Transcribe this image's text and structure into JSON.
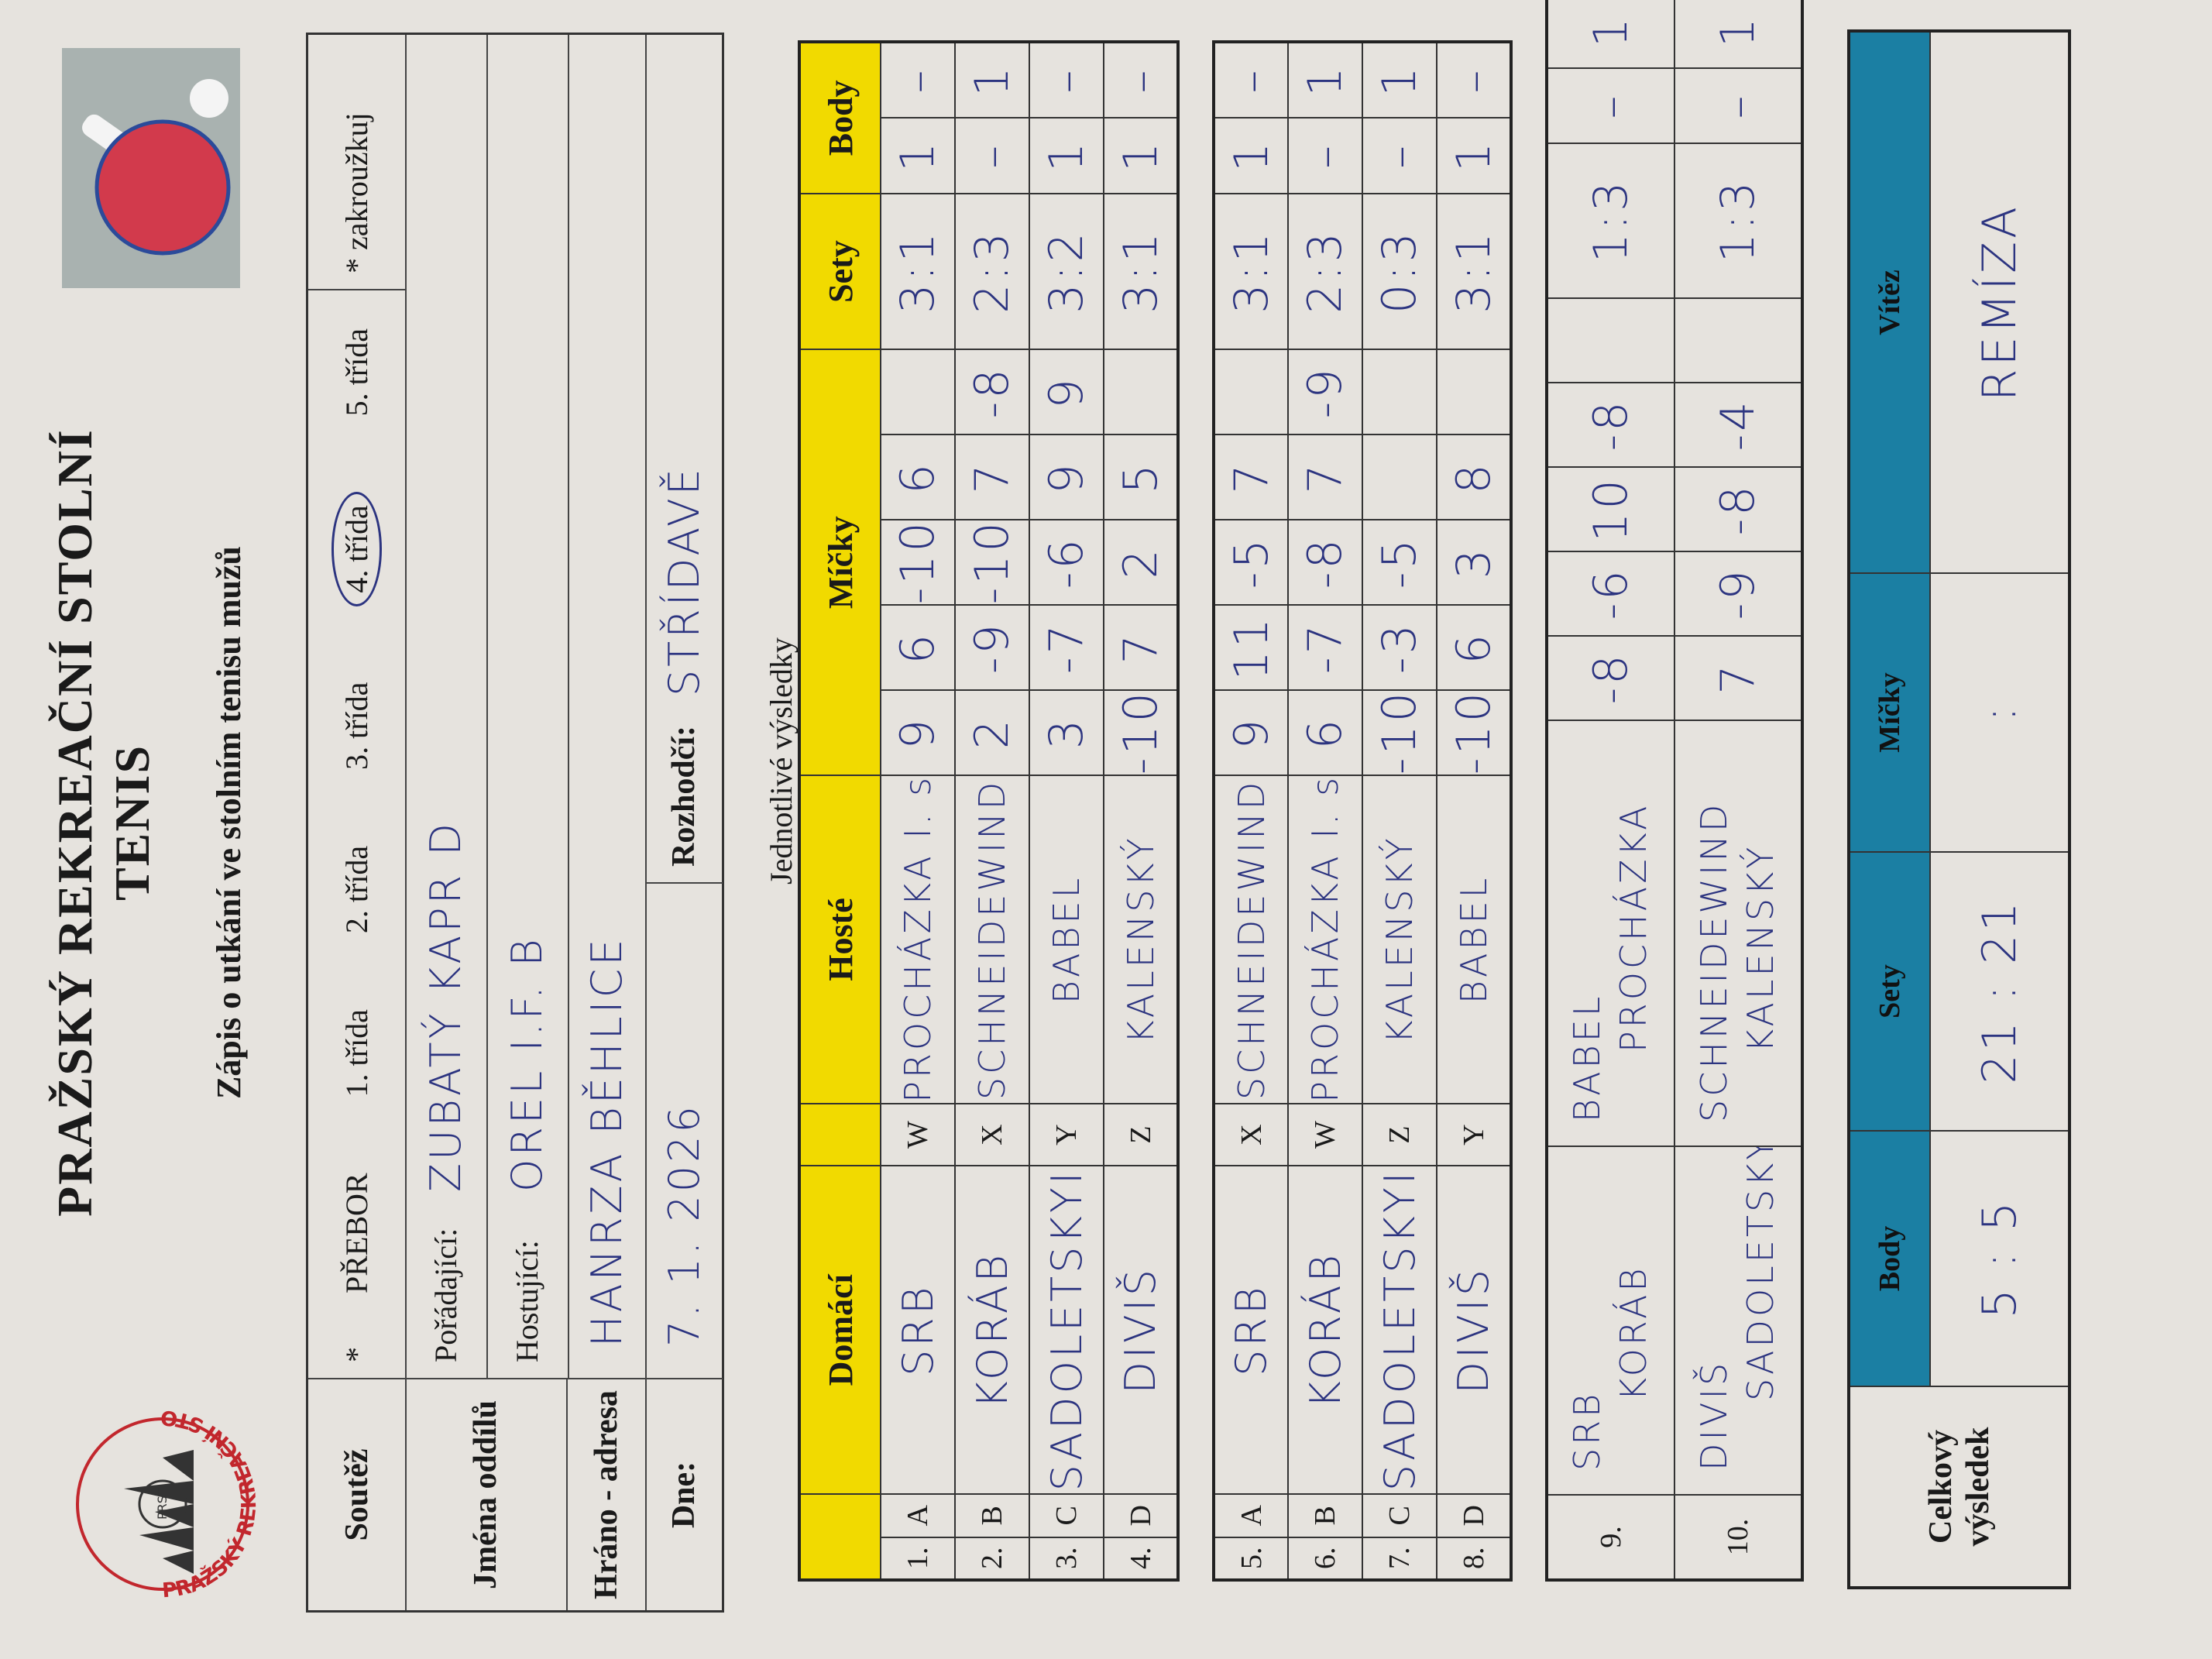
{
  "header": {
    "title": "PRAŽSKÝ REKREAČNÍ STOLNÍ TENIS",
    "subtitle": "Zápis o utkání ve stolním tenisu mužů",
    "logo_text": "PRAŽSKÝ REKREAČNÍ STOLNÍ TENIS",
    "logo_abbr": "PRST"
  },
  "info": {
    "competition_label": "Soutěž",
    "asterisk": "*",
    "options": [
      "PŘEBOR",
      "1. třída",
      "2. třída",
      "3. třída",
      "4. třída",
      "5. třída"
    ],
    "selected_option": "4. třída",
    "note": "* zakroužkuj",
    "clubs_label": "Jména oddílů",
    "home_label": "Pořádající:",
    "home_club": "ZUBATÝ KAPR D",
    "away_label": "Hostující:",
    "away_club": "OREL I.F. B",
    "venue_label": "Hráno - adresa",
    "venue": "HANRZA BĚHLICE",
    "date_label": "Dne:",
    "date": "7. 1. 2026",
    "referee_label": "Rozhodčí:",
    "referee": "STŘÍDAVĚ"
  },
  "singles": {
    "section_label": "Jednotlivé výsledky",
    "headers": {
      "home": "Domácí",
      "away": "Hosté",
      "balls": "Míčky",
      "sets": "Sety",
      "points": "Body"
    },
    "rows": [
      {
        "no": "1.",
        "hpos": "A",
        "home": "SRB",
        "apos": "W",
        "away": "PROCHÁZKA I. st.",
        "balls": [
          "9",
          "6",
          "-10",
          "6",
          ""
        ],
        "sets": "3:1",
        "points": [
          "1",
          "–"
        ]
      },
      {
        "no": "2.",
        "hpos": "B",
        "home": "KORÁB",
        "apos": "X",
        "away": "SCHNEIDEWIND",
        "balls": [
          "2",
          "-9",
          "-10",
          "7",
          "-8"
        ],
        "sets": "2:3",
        "points": [
          "–",
          "1"
        ]
      },
      {
        "no": "3.",
        "hpos": "C",
        "home": "SADOLETSKYI",
        "apos": "Y",
        "away": "BABEL",
        "balls": [
          "3",
          "-7",
          "-6",
          "9",
          "9"
        ],
        "sets": "3:2",
        "points": [
          "1",
          "–"
        ]
      },
      {
        "no": "4.",
        "hpos": "D",
        "home": "DIVIŠ",
        "apos": "Z",
        "away": "KALENSKÝ",
        "balls": [
          "-10",
          "7",
          "2",
          "5",
          ""
        ],
        "sets": "3:1",
        "points": [
          "1",
          "–"
        ]
      }
    ],
    "rows2": [
      {
        "no": "5.",
        "hpos": "A",
        "home": "SRB",
        "apos": "X",
        "away": "SCHNEIDEWIND",
        "balls": [
          "9",
          "11",
          "-5",
          "7",
          ""
        ],
        "sets": "3:1",
        "points": [
          "1",
          "–"
        ]
      },
      {
        "no": "6.",
        "hpos": "B",
        "home": "KORÁB",
        "apos": "W",
        "away": "PROCHÁZKA I. st.",
        "balls": [
          "6",
          "-7",
          "-8",
          "7",
          "-9"
        ],
        "sets": "2:3",
        "points": [
          "–",
          "1"
        ]
      },
      {
        "no": "7.",
        "hpos": "C",
        "home": "SADOLETSKYI",
        "apos": "Z",
        "away": "KALENSKÝ",
        "balls": [
          "-10",
          "-3",
          "-5",
          "",
          ""
        ],
        "sets": "0:3",
        "points": [
          "–",
          "1"
        ]
      },
      {
        "no": "8.",
        "hpos": "D",
        "home": "DIVIŠ",
        "apos": "Y",
        "away": "BABEL",
        "balls": [
          "-10",
          "6",
          "3",
          "8",
          ""
        ],
        "sets": "3:1",
        "points": [
          "1",
          "–"
        ]
      }
    ]
  },
  "doubles": {
    "rows": [
      {
        "no": "9.",
        "home": [
          "SRB",
          "KORÁB"
        ],
        "away": [
          "BABEL",
          "PROCHÁZKA"
        ],
        "balls": [
          "-8",
          "-6",
          "10",
          "-8",
          ""
        ],
        "sets": "1:3",
        "points": [
          "–",
          "1"
        ]
      },
      {
        "no": "10.",
        "home": [
          "DIVIŠ",
          "SADOLETSKYI"
        ],
        "away": [
          "SCHNEIDEWIND",
          "KALENSKÝ"
        ],
        "balls": [
          "7",
          "-9",
          "-8",
          "-4",
          ""
        ],
        "sets": "1:3",
        "points": [
          "–",
          "1"
        ]
      }
    ]
  },
  "summary": {
    "label": "Celkový výsledek",
    "headers": {
      "points": "Body",
      "sets": "Sety",
      "balls": "Míčky",
      "winner": "Vítěz"
    },
    "points": "5 : 5",
    "sets": "21 : 21",
    "balls": ":",
    "winner": "REMÍZA"
  },
  "colors": {
    "header_yellow": "#f1da00",
    "summary_blue": "#1b7fa3",
    "ink": "#2c3480"
  }
}
